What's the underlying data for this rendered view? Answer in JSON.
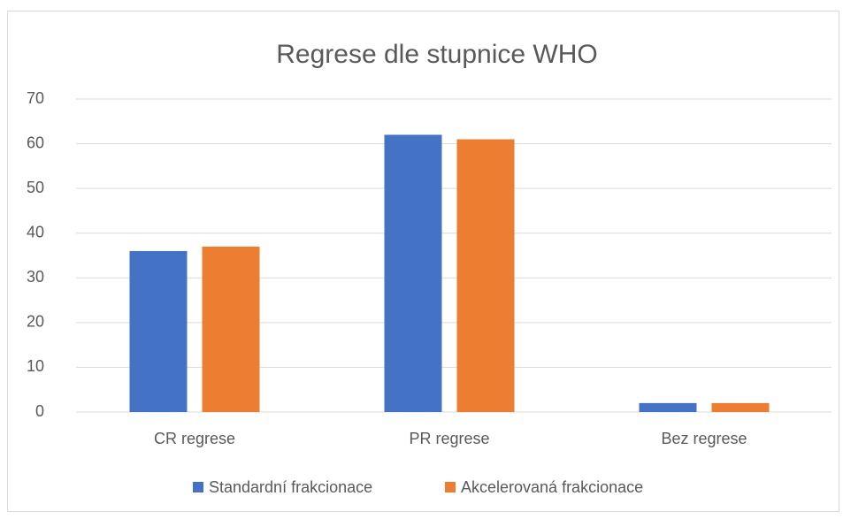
{
  "chart_data": {
    "type": "bar",
    "title": "Regrese dle stupnice WHO",
    "categories": [
      "CR regrese",
      "PR regrese",
      "Bez regrese"
    ],
    "series": [
      {
        "name": "Standardní frakcionace",
        "color": "#4472c4",
        "values": [
          36,
          62,
          2
        ]
      },
      {
        "name": "Akcelerovaná frakcionace",
        "color": "#ed7d31",
        "values": [
          37,
          61,
          2
        ]
      }
    ],
    "ylim": [
      0,
      70
    ],
    "yticks": [
      0,
      10,
      20,
      30,
      40,
      50,
      60,
      70
    ],
    "grid": true,
    "legend": "bottom"
  }
}
